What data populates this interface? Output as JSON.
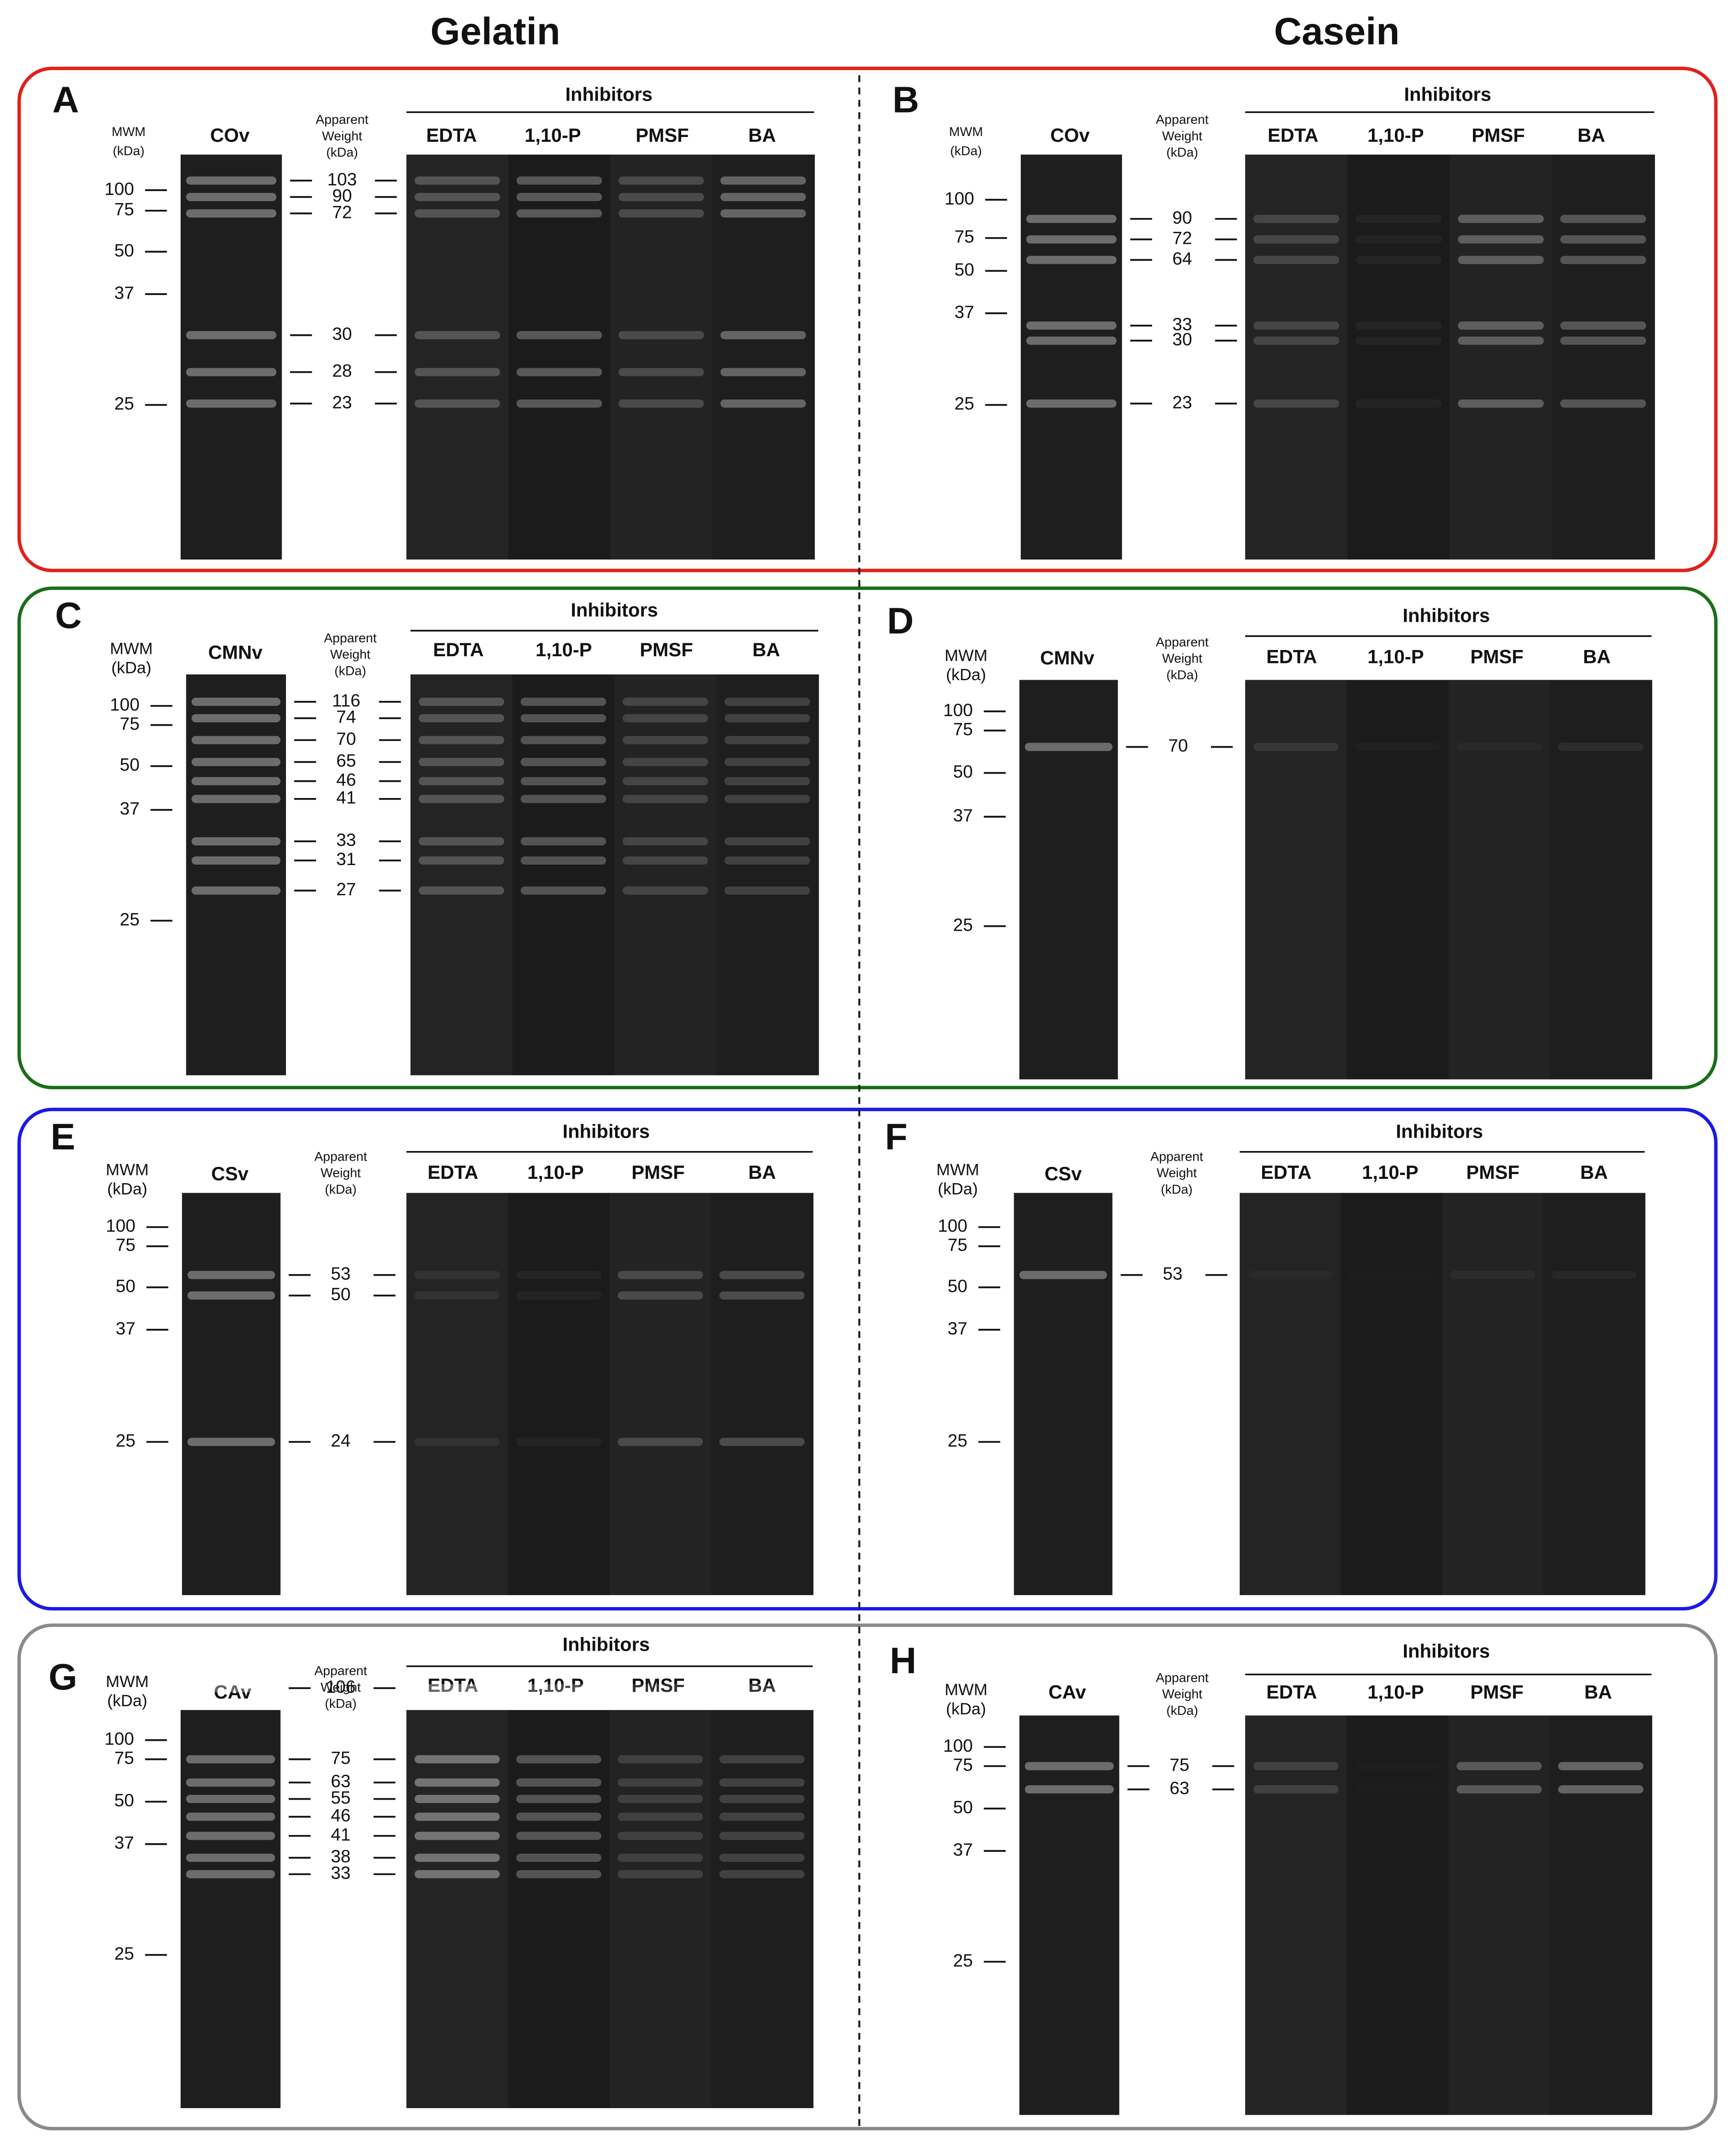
{
  "column_titles": [
    "Gelatin",
    "Casein"
  ],
  "panels": [
    {
      "letter": "A",
      "mwm_label": [
        "MWM",
        "(kDa)"
      ],
      "sample": "COv",
      "apparent_weight_label": [
        "Apparent",
        "Weight",
        "(kDa)"
      ],
      "inhibitors_title": "Inhibitors",
      "lanes": [
        "EDTA",
        "1,10-P",
        "PMSF",
        "BA"
      ],
      "markers": [
        100,
        75,
        50,
        37,
        25
      ],
      "apparent_weights": [
        103,
        90,
        72,
        30,
        28,
        23
      ]
    },
    {
      "letter": "B",
      "mwm_label": [
        "MWM",
        "(kDa)"
      ],
      "sample": "COv",
      "apparent_weight_label": [
        "Apparent",
        "Weight",
        "(kDa)"
      ],
      "inhibitors_title": "Inhibitors",
      "lanes": [
        "EDTA",
        "1,10-P",
        "PMSF",
        "BA"
      ],
      "markers": [
        100,
        75,
        50,
        37,
        25
      ],
      "apparent_weights": [
        90,
        72,
        64,
        33,
        30,
        23
      ]
    },
    {
      "letter": "C",
      "mwm_label": [
        "MWM",
        "(kDa)"
      ],
      "sample": "CMNv",
      "apparent_weight_label": [
        "Apparent",
        "Weight",
        "(kDa)"
      ],
      "inhibitors_title": "Inhibitors",
      "lanes": [
        "EDTA",
        "1,10-P",
        "PMSF",
        "BA"
      ],
      "markers": [
        100,
        75,
        50,
        37,
        25
      ],
      "apparent_weights": [
        116,
        74,
        70,
        65,
        46,
        41,
        33,
        31,
        27
      ]
    },
    {
      "letter": "D",
      "mwm_label": [
        "MWM",
        "(kDa)"
      ],
      "sample": "CMNv",
      "apparent_weight_label": [
        "Apparent",
        "Weight",
        "(kDa)"
      ],
      "inhibitors_title": "Inhibitors",
      "lanes": [
        "EDTA",
        "1,10-P",
        "PMSF",
        "BA"
      ],
      "markers": [
        100,
        75,
        50,
        37,
        25
      ],
      "apparent_weights": [
        70
      ]
    },
    {
      "letter": "E",
      "mwm_label": [
        "MWM",
        "(kDa)"
      ],
      "sample": "CSv",
      "apparent_weight_label": [
        "Apparent",
        "Weight",
        "(kDa)"
      ],
      "inhibitors_title": "Inhibitors",
      "lanes": [
        "EDTA",
        "1,10-P",
        "PMSF",
        "BA"
      ],
      "markers": [
        100,
        75,
        50,
        37,
        25
      ],
      "apparent_weights": [
        53,
        50,
        24
      ]
    },
    {
      "letter": "F",
      "mwm_label": [
        "MWM",
        "(kDa)"
      ],
      "sample": "CSv",
      "apparent_weight_label": [
        "Apparent",
        "Weight",
        "(kDa)"
      ],
      "inhibitors_title": "Inhibitors",
      "lanes": [
        "EDTA",
        "1,10-P",
        "PMSF",
        "BA"
      ],
      "markers": [
        100,
        75,
        50,
        37,
        25
      ],
      "apparent_weights": [
        53
      ]
    },
    {
      "letter": "G",
      "mwm_label": [
        "MWM",
        "(kDa)"
      ],
      "sample": "CAv",
      "apparent_weight_label": [
        "Apparent",
        "Weight",
        "(kDa)"
      ],
      "inhibitors_title": "Inhibitors",
      "lanes": [
        "EDTA",
        "1,10-P",
        "PMSF",
        "BA"
      ],
      "markers": [
        100,
        75,
        50,
        37,
        25
      ],
      "apparent_weights": [
        106,
        75,
        63,
        55,
        46,
        41,
        38,
        33
      ]
    },
    {
      "letter": "H",
      "mwm_label": [
        "MWM",
        "(kDa)"
      ],
      "sample": "CAv",
      "apparent_weight_label": [
        "Apparent",
        "Weight",
        "(kDa)"
      ],
      "inhibitors_title": "Inhibitors",
      "lanes": [
        "EDTA",
        "1,10-P",
        "PMSF",
        "BA"
      ],
      "markers": [
        100,
        75,
        50,
        37,
        25
      ],
      "apparent_weights": [
        75,
        63
      ]
    }
  ]
}
